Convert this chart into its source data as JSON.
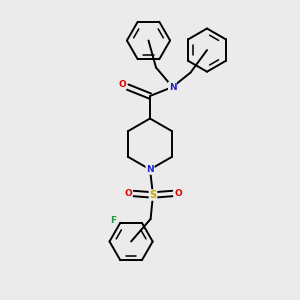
{
  "bg_color": "#ebebeb",
  "atom_colors": {
    "C": "#000000",
    "N": "#2222cc",
    "O": "#dd0000",
    "S": "#ccaa00",
    "F": "#229944"
  },
  "bond_color": "#000000",
  "bond_width": 1.4,
  "font_size": 7.0,
  "ring_r": 0.072,
  "pip_r": 0.085
}
